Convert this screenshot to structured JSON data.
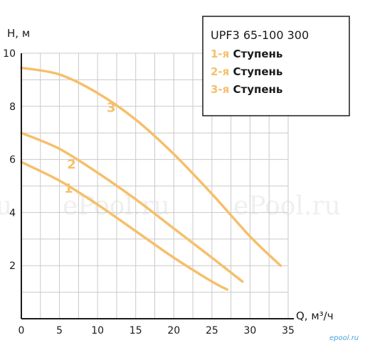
{
  "chart_data": {
    "type": "line",
    "ylabel": "H, м",
    "xlabel": "Q, м³/ч",
    "xlim": [
      0,
      35
    ],
    "ylim": [
      0,
      10
    ],
    "x_ticks": [
      0,
      5,
      10,
      15,
      20,
      25,
      30,
      35
    ],
    "y_ticks": [
      2,
      4,
      6,
      8,
      10
    ],
    "grid": true,
    "legend_position": "top-right",
    "legend_title": "UPF3 65-100 300",
    "series": [
      {
        "name": "1-я Ступень",
        "num": "1-я",
        "word": "Ступень",
        "label": "1",
        "x": [
          0,
          5,
          10,
          15,
          20,
          25,
          27
        ],
        "y": [
          5.9,
          5.2,
          4.3,
          3.3,
          2.3,
          1.4,
          1.1
        ]
      },
      {
        "name": "2-я Ступень",
        "num": "2-я",
        "word": "Ступень",
        "label": "2",
        "x": [
          0,
          5,
          10,
          15,
          20,
          25,
          29
        ],
        "y": [
          7.0,
          6.4,
          5.5,
          4.5,
          3.4,
          2.3,
          1.4
        ]
      },
      {
        "name": "3-я Ступень",
        "num": "3-я",
        "word": "Ступень",
        "label": "3",
        "x": [
          0,
          5,
          10,
          15,
          20,
          25,
          30,
          34
        ],
        "y": [
          9.45,
          9.2,
          8.5,
          7.5,
          6.2,
          4.7,
          3.1,
          2.0
        ]
      }
    ],
    "curve_color": "#f6bf6a"
  },
  "watermark": {
    "left": "u",
    "center": "ePool.ru",
    "right": "ePool.ru"
  },
  "corner_logo": "epool.ru"
}
